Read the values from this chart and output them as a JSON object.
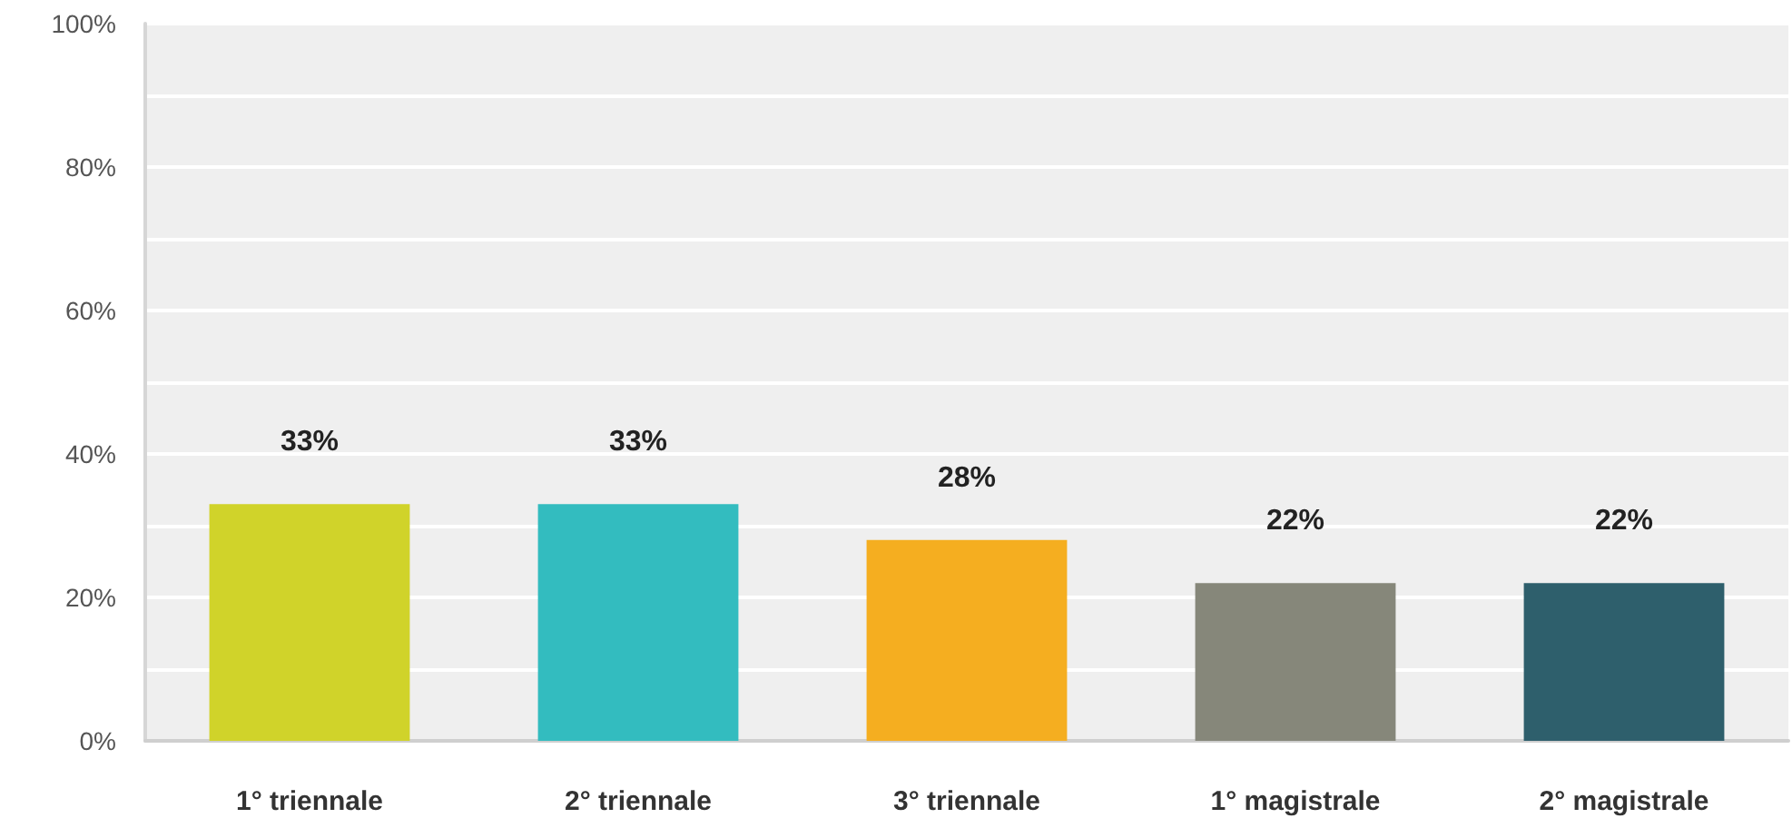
{
  "chart_data": {
    "type": "bar",
    "categories": [
      "1° triennale",
      "2° triennale",
      "3° triennale",
      "1° magistrale",
      "2° magistrale"
    ],
    "values": [
      33,
      33,
      28,
      22,
      22
    ],
    "colors": [
      "#d0d32a",
      "#33bcbf",
      "#f5ae20",
      "#86877a",
      "#2e5f6c"
    ],
    "value_labels": [
      "33%",
      "33%",
      "28%",
      "22%",
      "22%"
    ],
    "ylim": [
      0,
      100
    ],
    "yticks": [
      {
        "value": 0,
        "label": "0%"
      },
      {
        "value": 10,
        "label": null
      },
      {
        "value": 20,
        "label": "20%"
      },
      {
        "value": 30,
        "label": null
      },
      {
        "value": 40,
        "label": "40%"
      },
      {
        "value": 50,
        "label": null
      },
      {
        "value": 60,
        "label": "60%"
      },
      {
        "value": 70,
        "label": null
      },
      {
        "value": 80,
        "label": "80%"
      },
      {
        "value": 90,
        "label": null
      },
      {
        "value": 100,
        "label": "100%"
      }
    ],
    "grid": "y"
  }
}
